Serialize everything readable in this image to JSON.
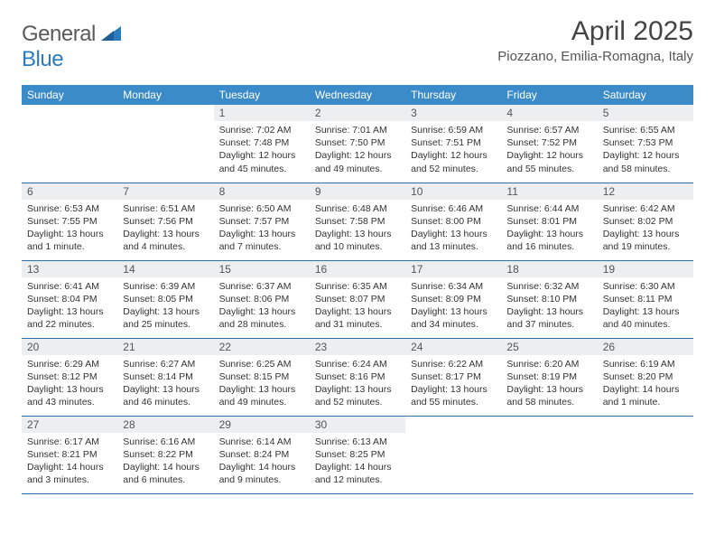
{
  "brand": {
    "part1": "General",
    "part2": "Blue"
  },
  "title": "April 2025",
  "location": "Piozzano, Emilia-Romagna, Italy",
  "colors": {
    "header_bg": "#3b8bc9",
    "header_text": "#ffffff",
    "daynum_bg": "#eceeef",
    "row_border": "#2d6ea8",
    "title_color": "#444444",
    "body_text": "#333333"
  },
  "dow": [
    "Sunday",
    "Monday",
    "Tuesday",
    "Wednesday",
    "Thursday",
    "Friday",
    "Saturday"
  ],
  "weeks": [
    [
      null,
      null,
      {
        "n": "1",
        "sr": "Sunrise: 7:02 AM",
        "ss": "Sunset: 7:48 PM",
        "dl": "Daylight: 12 hours and 45 minutes."
      },
      {
        "n": "2",
        "sr": "Sunrise: 7:01 AM",
        "ss": "Sunset: 7:50 PM",
        "dl": "Daylight: 12 hours and 49 minutes."
      },
      {
        "n": "3",
        "sr": "Sunrise: 6:59 AM",
        "ss": "Sunset: 7:51 PM",
        "dl": "Daylight: 12 hours and 52 minutes."
      },
      {
        "n": "4",
        "sr": "Sunrise: 6:57 AM",
        "ss": "Sunset: 7:52 PM",
        "dl": "Daylight: 12 hours and 55 minutes."
      },
      {
        "n": "5",
        "sr": "Sunrise: 6:55 AM",
        "ss": "Sunset: 7:53 PM",
        "dl": "Daylight: 12 hours and 58 minutes."
      }
    ],
    [
      {
        "n": "6",
        "sr": "Sunrise: 6:53 AM",
        "ss": "Sunset: 7:55 PM",
        "dl": "Daylight: 13 hours and 1 minute."
      },
      {
        "n": "7",
        "sr": "Sunrise: 6:51 AM",
        "ss": "Sunset: 7:56 PM",
        "dl": "Daylight: 13 hours and 4 minutes."
      },
      {
        "n": "8",
        "sr": "Sunrise: 6:50 AM",
        "ss": "Sunset: 7:57 PM",
        "dl": "Daylight: 13 hours and 7 minutes."
      },
      {
        "n": "9",
        "sr": "Sunrise: 6:48 AM",
        "ss": "Sunset: 7:58 PM",
        "dl": "Daylight: 13 hours and 10 minutes."
      },
      {
        "n": "10",
        "sr": "Sunrise: 6:46 AM",
        "ss": "Sunset: 8:00 PM",
        "dl": "Daylight: 13 hours and 13 minutes."
      },
      {
        "n": "11",
        "sr": "Sunrise: 6:44 AM",
        "ss": "Sunset: 8:01 PM",
        "dl": "Daylight: 13 hours and 16 minutes."
      },
      {
        "n": "12",
        "sr": "Sunrise: 6:42 AM",
        "ss": "Sunset: 8:02 PM",
        "dl": "Daylight: 13 hours and 19 minutes."
      }
    ],
    [
      {
        "n": "13",
        "sr": "Sunrise: 6:41 AM",
        "ss": "Sunset: 8:04 PM",
        "dl": "Daylight: 13 hours and 22 minutes."
      },
      {
        "n": "14",
        "sr": "Sunrise: 6:39 AM",
        "ss": "Sunset: 8:05 PM",
        "dl": "Daylight: 13 hours and 25 minutes."
      },
      {
        "n": "15",
        "sr": "Sunrise: 6:37 AM",
        "ss": "Sunset: 8:06 PM",
        "dl": "Daylight: 13 hours and 28 minutes."
      },
      {
        "n": "16",
        "sr": "Sunrise: 6:35 AM",
        "ss": "Sunset: 8:07 PM",
        "dl": "Daylight: 13 hours and 31 minutes."
      },
      {
        "n": "17",
        "sr": "Sunrise: 6:34 AM",
        "ss": "Sunset: 8:09 PM",
        "dl": "Daylight: 13 hours and 34 minutes."
      },
      {
        "n": "18",
        "sr": "Sunrise: 6:32 AM",
        "ss": "Sunset: 8:10 PM",
        "dl": "Daylight: 13 hours and 37 minutes."
      },
      {
        "n": "19",
        "sr": "Sunrise: 6:30 AM",
        "ss": "Sunset: 8:11 PM",
        "dl": "Daylight: 13 hours and 40 minutes."
      }
    ],
    [
      {
        "n": "20",
        "sr": "Sunrise: 6:29 AM",
        "ss": "Sunset: 8:12 PM",
        "dl": "Daylight: 13 hours and 43 minutes."
      },
      {
        "n": "21",
        "sr": "Sunrise: 6:27 AM",
        "ss": "Sunset: 8:14 PM",
        "dl": "Daylight: 13 hours and 46 minutes."
      },
      {
        "n": "22",
        "sr": "Sunrise: 6:25 AM",
        "ss": "Sunset: 8:15 PM",
        "dl": "Daylight: 13 hours and 49 minutes."
      },
      {
        "n": "23",
        "sr": "Sunrise: 6:24 AM",
        "ss": "Sunset: 8:16 PM",
        "dl": "Daylight: 13 hours and 52 minutes."
      },
      {
        "n": "24",
        "sr": "Sunrise: 6:22 AM",
        "ss": "Sunset: 8:17 PM",
        "dl": "Daylight: 13 hours and 55 minutes."
      },
      {
        "n": "25",
        "sr": "Sunrise: 6:20 AM",
        "ss": "Sunset: 8:19 PM",
        "dl": "Daylight: 13 hours and 58 minutes."
      },
      {
        "n": "26",
        "sr": "Sunrise: 6:19 AM",
        "ss": "Sunset: 8:20 PM",
        "dl": "Daylight: 14 hours and 1 minute."
      }
    ],
    [
      {
        "n": "27",
        "sr": "Sunrise: 6:17 AM",
        "ss": "Sunset: 8:21 PM",
        "dl": "Daylight: 14 hours and 3 minutes."
      },
      {
        "n": "28",
        "sr": "Sunrise: 6:16 AM",
        "ss": "Sunset: 8:22 PM",
        "dl": "Daylight: 14 hours and 6 minutes."
      },
      {
        "n": "29",
        "sr": "Sunrise: 6:14 AM",
        "ss": "Sunset: 8:24 PM",
        "dl": "Daylight: 14 hours and 9 minutes."
      },
      {
        "n": "30",
        "sr": "Sunrise: 6:13 AM",
        "ss": "Sunset: 8:25 PM",
        "dl": "Daylight: 14 hours and 12 minutes."
      },
      null,
      null,
      null
    ]
  ]
}
